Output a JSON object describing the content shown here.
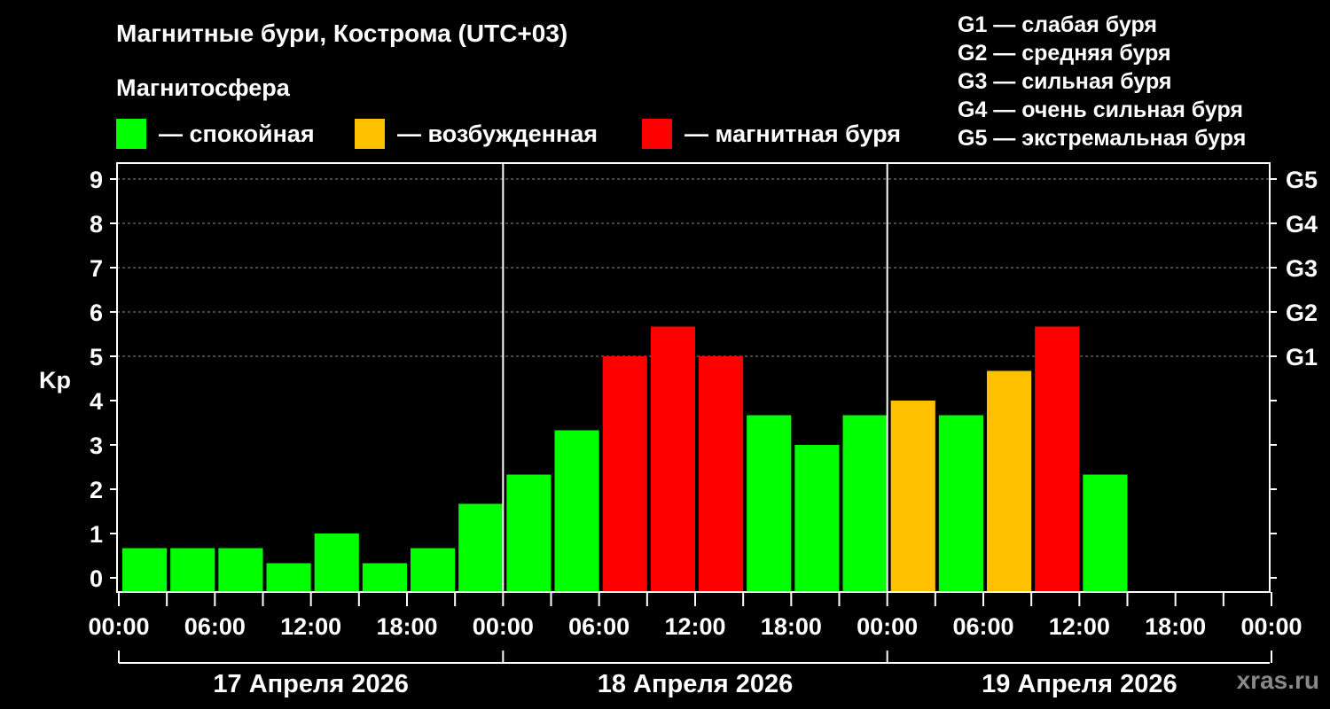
{
  "title": "Магнитные бури, Кострома (UTC+03)",
  "subtitle": "Магнитосфера",
  "legend": [
    {
      "label": "— спокойная",
      "color": "#00ff00"
    },
    {
      "label": "— возбужденная",
      "color": "#ffc000"
    },
    {
      "label": "— магнитная буря",
      "color": "#ff0000"
    }
  ],
  "storm_scale": [
    "G1 — слабая буря",
    "G2 — средняя буря",
    "G3 — сильная буря",
    "G4 — очень сильная буря",
    "G5 — экстремальная буря"
  ],
  "watermark": "xras.ru",
  "chart_data": {
    "type": "bar",
    "ylabel": "Kp",
    "ylim": [
      0,
      9
    ],
    "yticks": [
      "0",
      "1",
      "2",
      "3",
      "4",
      "5",
      "6",
      "7",
      "8",
      "9"
    ],
    "right_ticks": [
      {
        "value": 5,
        "label": "G1"
      },
      {
        "value": 6,
        "label": "G2"
      },
      {
        "value": 7,
        "label": "G3"
      },
      {
        "value": 8,
        "label": "G4"
      },
      {
        "value": 9,
        "label": "G5"
      }
    ],
    "xticks": [
      "00:00",
      "06:00",
      "12:00",
      "18:00",
      "00:00",
      "06:00",
      "12:00",
      "18:00",
      "00:00",
      "06:00",
      "12:00",
      "18:00",
      "00:00"
    ],
    "days": [
      "17 Апреля 2026",
      "18 Апреля 2026",
      "19 Апреля 2026"
    ],
    "interval_hours": 3,
    "values": [
      0.67,
      0.67,
      0.67,
      0.33,
      1.0,
      0.33,
      0.67,
      1.67,
      2.33,
      3.33,
      5.0,
      5.67,
      5.0,
      3.67,
      3.0,
      3.67,
      4.0,
      3.67,
      4.67,
      5.67,
      2.33
    ],
    "levels": [
      "quiet",
      "quiet",
      "quiet",
      "quiet",
      "quiet",
      "quiet",
      "quiet",
      "quiet",
      "quiet",
      "quiet",
      "storm",
      "storm",
      "storm",
      "quiet",
      "quiet",
      "quiet",
      "active",
      "quiet",
      "active",
      "storm",
      "quiet"
    ],
    "level_colors": {
      "quiet": "#00ff00",
      "active": "#ffc000",
      "storm": "#ff0000"
    },
    "grid": true
  }
}
